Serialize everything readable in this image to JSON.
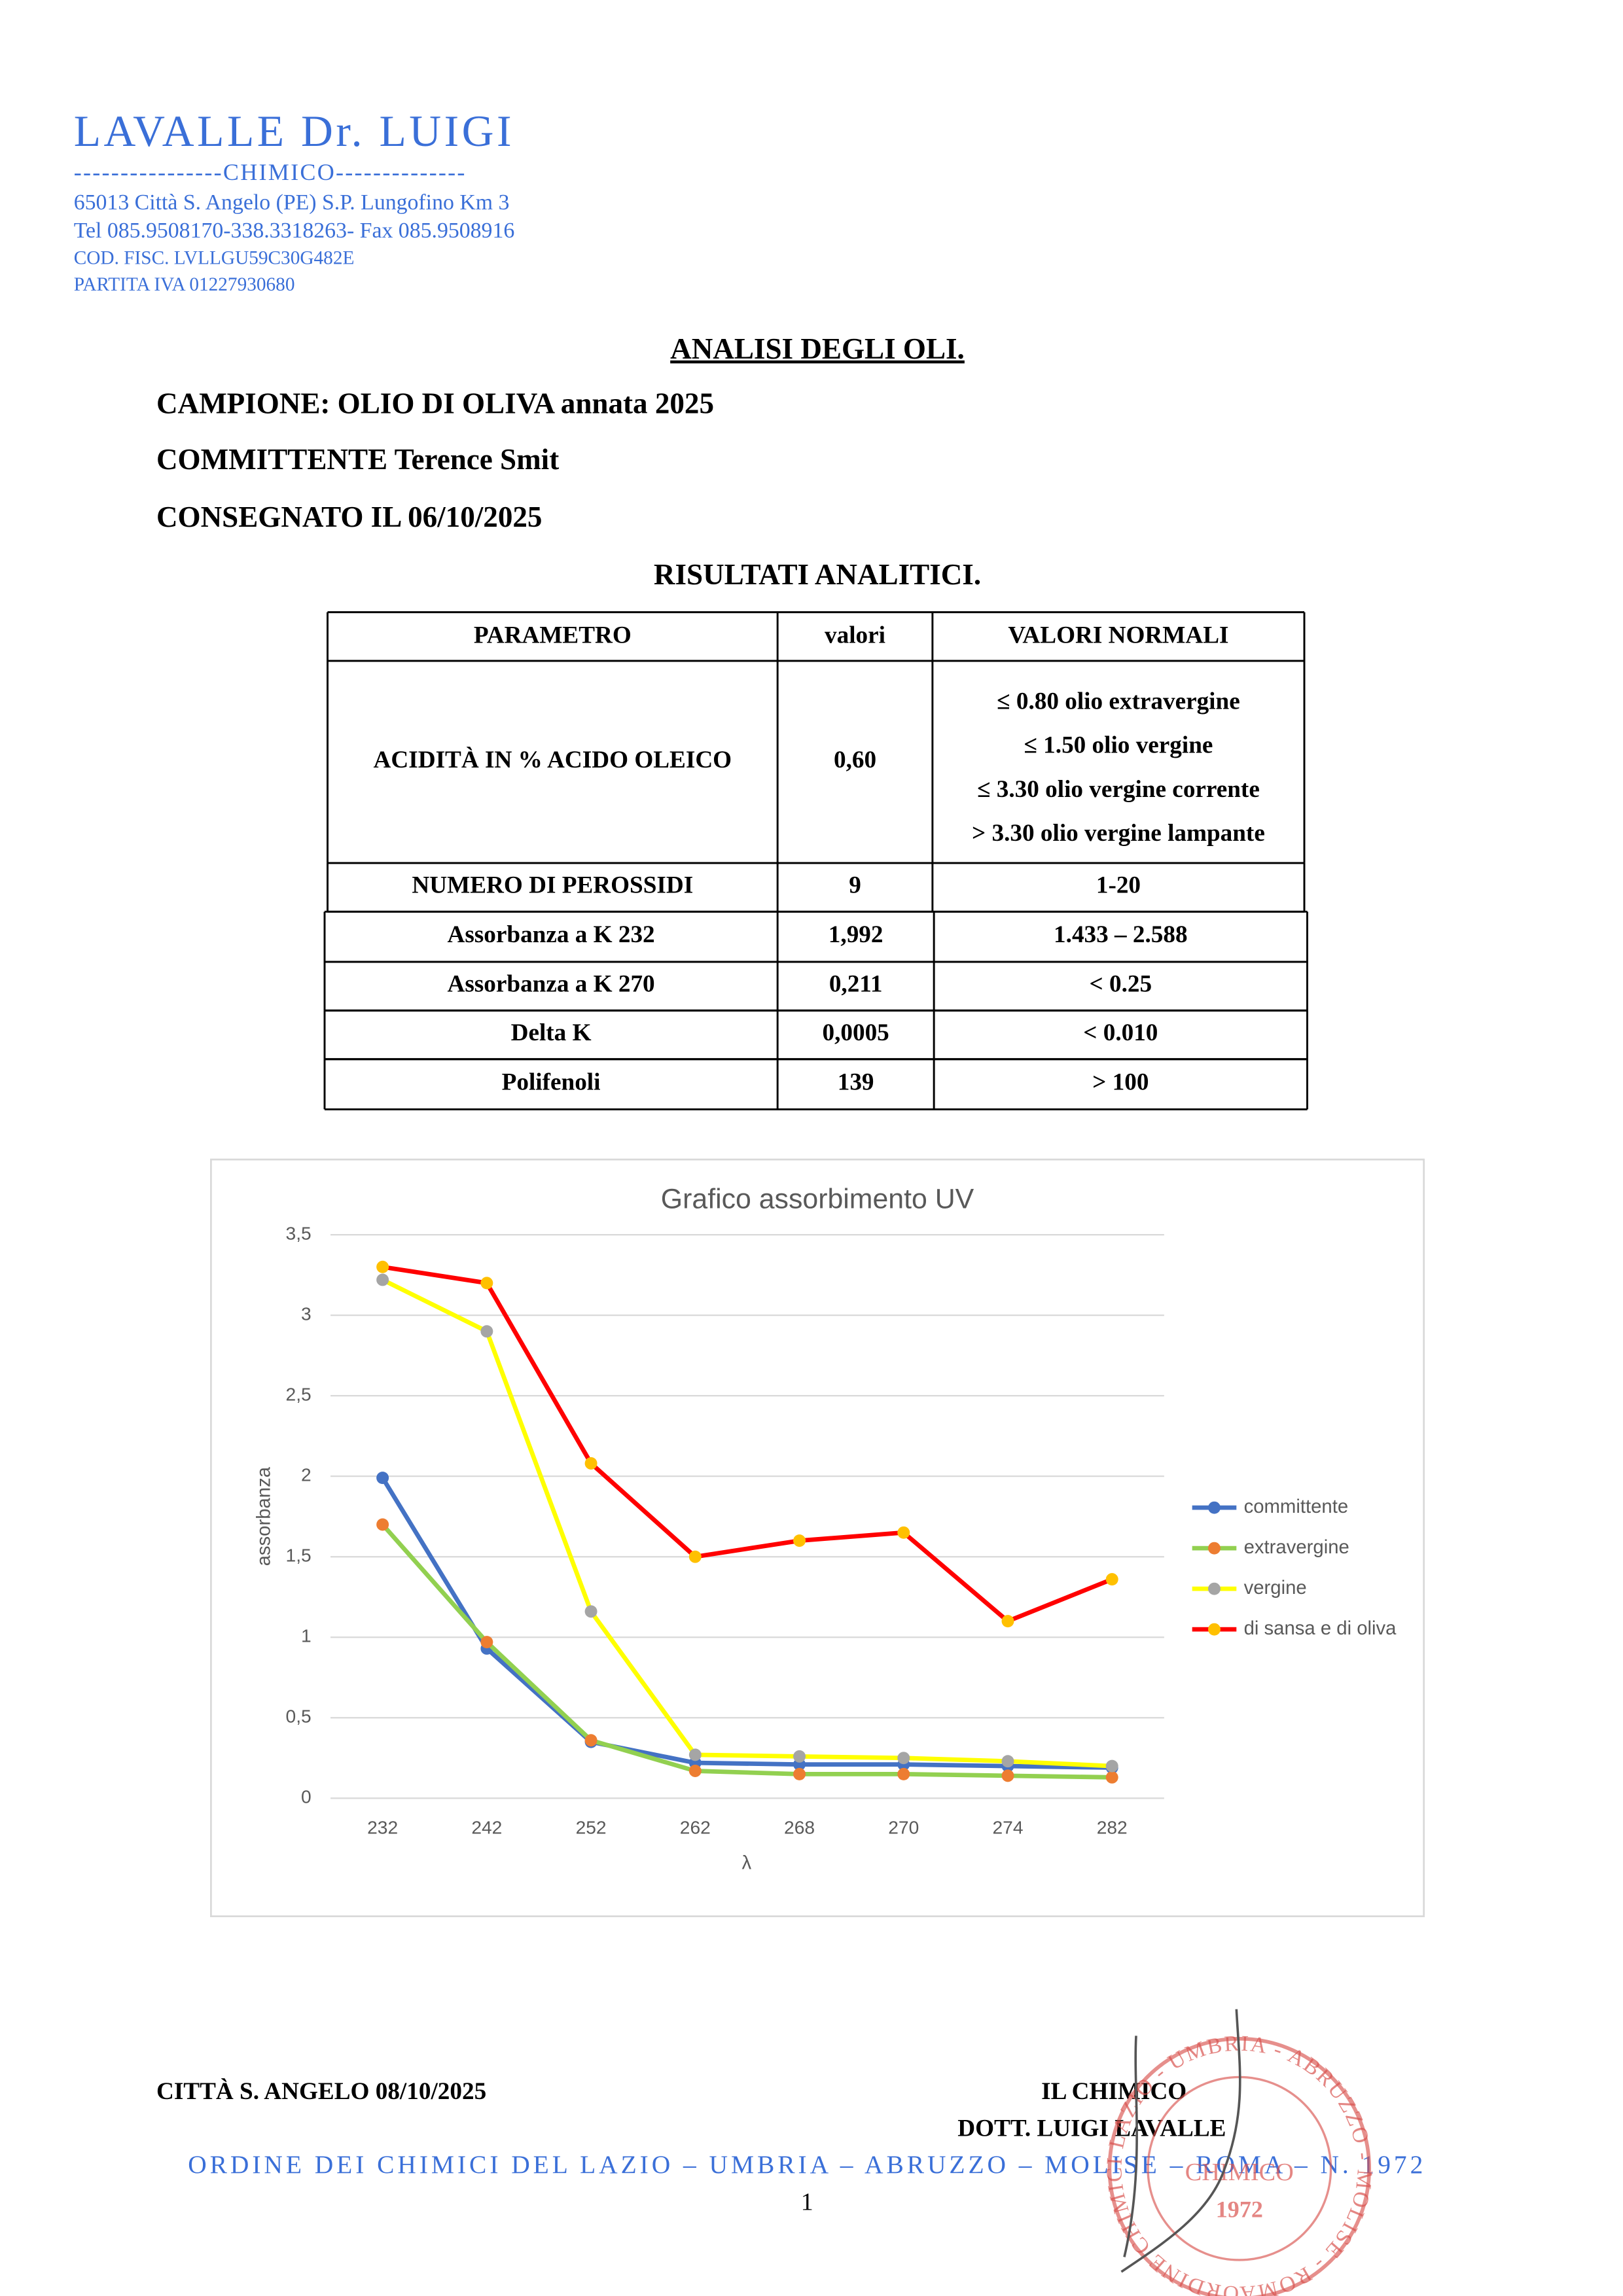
{
  "header": {
    "name": "LAVALLE Dr. LUIGI",
    "profession": "----------------CHIMICO--------------",
    "address": "65013 Città S. Angelo (PE)   S.P. Lungofino Km 3",
    "phone": "Tel 085.9508170-338.3318263- Fax 085.9508916",
    "tax_code": "COD. FISC. LVLLGU59C30G482E",
    "vat": "PARTITA IVA 01227930680"
  },
  "title": "ANALISI DEGLI OLI.",
  "sample": "CAMPIONE: OLIO DI OLIVA annata 2025",
  "client": "COMMITTENTE Terence Smit",
  "delivered": "CONSEGNATO IL 06/10/2025",
  "results_title": "RISULTATI ANALITICI.",
  "table": {
    "columns": [
      "PARAMETRO",
      "valori",
      "VALORI NORMALI"
    ],
    "rows": [
      {
        "parameter": "ACIDITÀ IN % ACIDO OLEICO",
        "value": "0,60",
        "normal": [
          "≤ 0.80 olio extravergine",
          "≤ 1.50 olio vergine",
          "≤ 3.30 olio vergine corrente",
          "> 3.30 olio vergine lampante"
        ]
      },
      {
        "parameter": "NUMERO DI PEROSSIDI",
        "value": "9",
        "normal": [
          "1-20"
        ]
      },
      {
        "parameter": "Assorbanza a K 232",
        "value": "1,992",
        "normal": [
          "1.433 – 2.588"
        ]
      },
      {
        "parameter": "Assorbanza a K 270",
        "value": "0,211",
        "normal": [
          "< 0.25"
        ]
      },
      {
        "parameter": "Delta K",
        "value": "0,0005",
        "normal": [
          "< 0.010"
        ]
      },
      {
        "parameter": "Polifenoli",
        "value": "139",
        "normal": [
          "> 100"
        ]
      }
    ]
  },
  "chart_data": {
    "type": "line",
    "title": "Grafico assorbimento UV",
    "x_label": "λ",
    "y_label": "assorbanza",
    "categories": [
      "232",
      "242",
      "252",
      "262",
      "268",
      "270",
      "274",
      "282"
    ],
    "ylim": [
      0,
      3.5
    ],
    "yticks": [
      0,
      {
        "value": 0.5,
        "label": "0,5"
      },
      1,
      {
        "value": 1.5,
        "label": "1,5"
      },
      2,
      {
        "value": 2.5,
        "label": "2,5"
      },
      3,
      {
        "value": 3.5,
        "label": "3,5"
      }
    ],
    "grid": true,
    "legend": "right",
    "series": [
      {
        "name": "committente",
        "color": "#4472c4",
        "marker_color": "#4472c4",
        "values": [
          1.99,
          0.93,
          0.35,
          0.22,
          0.21,
          0.21,
          0.2,
          0.19
        ]
      },
      {
        "name": "extravergine",
        "color": "#92d050",
        "marker_color": "#ed7d31",
        "values": [
          1.7,
          0.97,
          0.36,
          0.17,
          0.15,
          0.15,
          0.14,
          0.13
        ]
      },
      {
        "name": "vergine",
        "color": "#ffff00",
        "marker_color": "#a5a5a5",
        "values": [
          3.22,
          2.9,
          1.16,
          0.27,
          0.26,
          0.25,
          0.23,
          0.2
        ]
      },
      {
        "name": "di sansa e di oliva",
        "color": "#ff0000",
        "marker_color": "#ffc000",
        "values": [
          3.3,
          3.2,
          2.08,
          1.5,
          1.6,
          1.65,
          1.1,
          1.36
        ]
      }
    ]
  },
  "footer": {
    "place_date": "CITTÀ S. ANGELO 08/10/2025",
    "role": "IL CHIMICO",
    "signatory": "DOTT. LUIGI LAVALLE",
    "order": "ORDINE DEI CHIMICI DEL LAZIO – UMBRIA – ABRUZZO – MOLISE – ROMA – N. 1972",
    "page": "1"
  },
  "stamp": {
    "ring": "ORDINE CHIMICI LAZIO - UMBRIA - ABRUZZO - MOLISE - ROMA",
    "center": "CHIMICO",
    "number": "1972"
  }
}
